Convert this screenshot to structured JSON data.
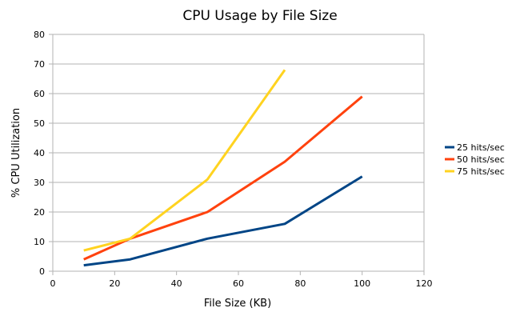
{
  "chart_data": {
    "type": "line",
    "title": "CPU Usage by File Size",
    "xlabel": "File Size (KB)",
    "ylabel": "% CPU Utilization",
    "xlim": [
      0,
      120
    ],
    "ylim": [
      0,
      80
    ],
    "xticks": [
      0,
      20,
      40,
      60,
      80,
      100,
      120
    ],
    "yticks": [
      0,
      10,
      20,
      30,
      40,
      50,
      60,
      70,
      80
    ],
    "grid": "horizontal",
    "legend_position": "right",
    "series": [
      {
        "name": "25 hits/sec",
        "color": "#004586",
        "points": [
          [
            10,
            2
          ],
          [
            25,
            4
          ],
          [
            50,
            11
          ],
          [
            75,
            16
          ],
          [
            100,
            32
          ]
        ]
      },
      {
        "name": "50 hits/sec",
        "color": "#ff420e",
        "points": [
          [
            10,
            4
          ],
          [
            25,
            11
          ],
          [
            50,
            20
          ],
          [
            75,
            37
          ],
          [
            100,
            59
          ]
        ]
      },
      {
        "name": "75 hits/sec",
        "color": "#ffd320",
        "points": [
          [
            10,
            7
          ],
          [
            25,
            11
          ],
          [
            50,
            31
          ],
          [
            75,
            68
          ]
        ]
      }
    ]
  }
}
